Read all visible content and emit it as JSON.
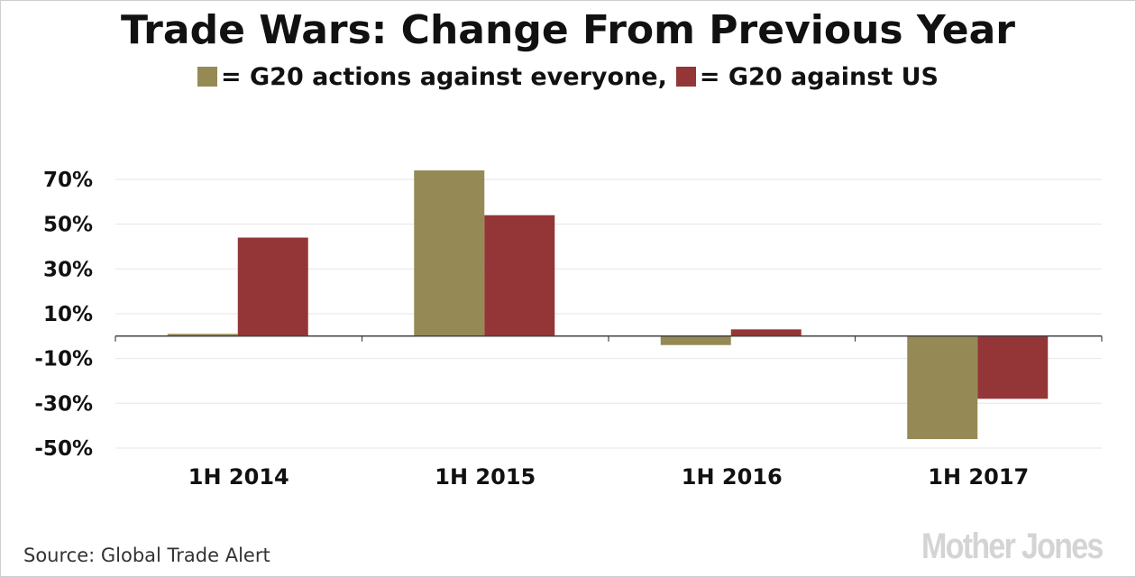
{
  "colors": {
    "everyone": "#958a55",
    "us": "#943637",
    "grid": "#e6e6e6",
    "axis": "#444444"
  },
  "title": "Trade Wars: Change From Previous Year",
  "legend": {
    "everyone_label": "= G20 actions against everyone,",
    "us_label": "= G20 against US"
  },
  "chart_data": {
    "type": "bar",
    "title": "Trade Wars: Change From Previous Year",
    "categories": [
      "1H 2014",
      "1H 2015",
      "1H 2016",
      "1H 2017"
    ],
    "series": [
      {
        "name": "G20 actions against everyone",
        "values": [
          1,
          74,
          -4,
          -46
        ]
      },
      {
        "name": "G20 against US",
        "values": [
          44,
          54,
          3,
          -28
        ]
      }
    ],
    "yticks": [
      -50,
      -30,
      -10,
      10,
      30,
      50,
      70
    ],
    "ytick_labels": [
      "-50%",
      "-30%",
      "-10%",
      "10%",
      "30%",
      "50%",
      "70%"
    ],
    "ylim": [
      -50,
      70
    ],
    "grid": true,
    "xlabel": "",
    "ylabel": ""
  },
  "source": "Source: Global Trade Alert",
  "logo": "Mother Jones"
}
